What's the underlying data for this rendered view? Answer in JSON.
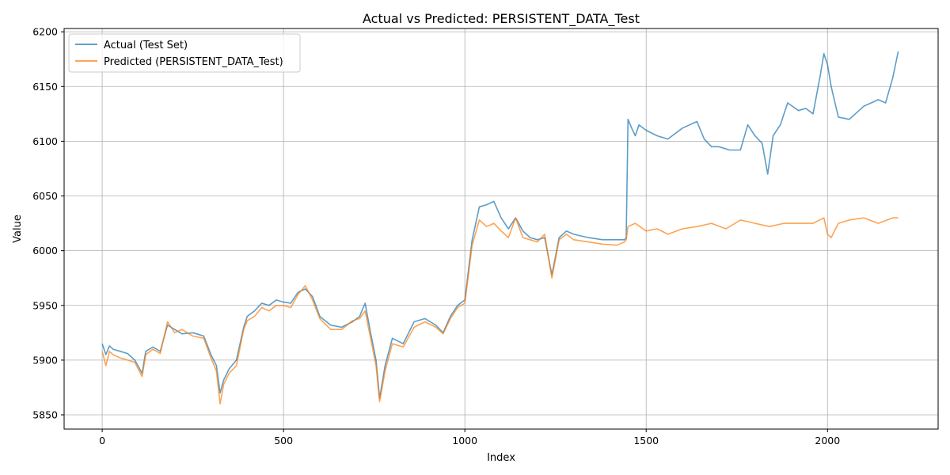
{
  "chart_data": {
    "type": "line",
    "title": "Actual vs Predicted: PERSISTENT_DATA_Test",
    "xlabel": "Index",
    "ylabel": "Value",
    "xlim": [
      -105,
      2305
    ],
    "ylim": [
      5837,
      6203
    ],
    "xticks": [
      0,
      500,
      1000,
      1500,
      2000
    ],
    "yticks": [
      5850,
      5900,
      5950,
      6000,
      6050,
      6100,
      6150,
      6200
    ],
    "grid": true,
    "legend_position": "top-left",
    "series": [
      {
        "name": "Actual (Test Set)",
        "color": "#1f77b4",
        "x": [
          0,
          10,
          20,
          30,
          50,
          70,
          90,
          110,
          120,
          140,
          160,
          180,
          200,
          220,
          250,
          280,
          300,
          315,
          325,
          335,
          350,
          370,
          390,
          400,
          420,
          440,
          460,
          480,
          500,
          520,
          540,
          560,
          580,
          600,
          630,
          660,
          690,
          710,
          725,
          740,
          755,
          765,
          780,
          800,
          830,
          860,
          890,
          920,
          940,
          960,
          980,
          1000,
          1020,
          1040,
          1060,
          1080,
          1100,
          1120,
          1140,
          1160,
          1180,
          1200,
          1220,
          1240,
          1260,
          1280,
          1300,
          1340,
          1380,
          1420,
          1440,
          1445,
          1450,
          1460,
          1470,
          1480,
          1500,
          1530,
          1560,
          1600,
          1640,
          1660,
          1680,
          1700,
          1730,
          1760,
          1780,
          1800,
          1820,
          1835,
          1850,
          1870,
          1890,
          1920,
          1940,
          1960,
          1980,
          1990,
          2000,
          2010,
          2030,
          2060,
          2100,
          2120,
          2140,
          2160,
          2180,
          2195
        ],
        "y": [
          5915,
          5905,
          5913,
          5910,
          5908,
          5906,
          5900,
          5888,
          5908,
          5912,
          5908,
          5932,
          5928,
          5924,
          5925,
          5922,
          5905,
          5895,
          5870,
          5882,
          5892,
          5900,
          5930,
          5940,
          5945,
          5952,
          5950,
          5955,
          5953,
          5952,
          5962,
          5965,
          5958,
          5940,
          5932,
          5930,
          5935,
          5940,
          5952,
          5925,
          5900,
          5865,
          5895,
          5920,
          5915,
          5935,
          5938,
          5932,
          5925,
          5940,
          5950,
          5955,
          6010,
          6040,
          6042,
          6045,
          6030,
          6020,
          6030,
          6018,
          6012,
          6010,
          6012,
          5978,
          6012,
          6018,
          6015,
          6012,
          6010,
          6010,
          6010,
          6012,
          6120,
          6112,
          6105,
          6115,
          6110,
          6105,
          6102,
          6112,
          6118,
          6102,
          6095,
          6095,
          6092,
          6092,
          6115,
          6105,
          6098,
          6070,
          6105,
          6115,
          6135,
          6128,
          6130,
          6125,
          6160,
          6180,
          6170,
          6150,
          6122,
          6120,
          6132,
          6135,
          6138,
          6135,
          6158,
          6182
        ]
      },
      {
        "name": "Predicted (PERSISTENT_DATA_Test)",
        "color": "#ff7f0e",
        "x": [
          0,
          10,
          20,
          30,
          50,
          70,
          90,
          110,
          120,
          140,
          160,
          180,
          200,
          220,
          250,
          280,
          300,
          315,
          325,
          335,
          350,
          370,
          390,
          400,
          420,
          440,
          460,
          480,
          500,
          520,
          540,
          560,
          580,
          600,
          630,
          660,
          690,
          710,
          725,
          740,
          755,
          765,
          780,
          800,
          830,
          860,
          890,
          920,
          940,
          960,
          980,
          1000,
          1020,
          1040,
          1060,
          1080,
          1100,
          1120,
          1140,
          1160,
          1180,
          1200,
          1220,
          1240,
          1260,
          1280,
          1300,
          1340,
          1380,
          1420,
          1440,
          1445,
          1450,
          1470,
          1500,
          1530,
          1560,
          1600,
          1640,
          1680,
          1720,
          1760,
          1800,
          1840,
          1880,
          1920,
          1960,
          1990,
          2000,
          2010,
          2030,
          2060,
          2100,
          2140,
          2180,
          2195
        ],
        "y": [
          5908,
          5895,
          5908,
          5905,
          5902,
          5900,
          5898,
          5885,
          5905,
          5910,
          5906,
          5935,
          5925,
          5928,
          5922,
          5920,
          5902,
          5890,
          5860,
          5878,
          5888,
          5895,
          5928,
          5936,
          5940,
          5948,
          5945,
          5950,
          5950,
          5948,
          5960,
          5968,
          5955,
          5938,
          5928,
          5928,
          5936,
          5938,
          5945,
          5920,
          5895,
          5862,
          5890,
          5915,
          5912,
          5930,
          5935,
          5930,
          5924,
          5938,
          5948,
          5952,
          6005,
          6028,
          6022,
          6025,
          6018,
          6012,
          6030,
          6012,
          6010,
          6008,
          6015,
          5975,
          6010,
          6015,
          6010,
          6008,
          6006,
          6005,
          6008,
          6010,
          6022,
          6025,
          6018,
          6020,
          6015,
          6020,
          6022,
          6025,
          6020,
          6028,
          6025,
          6022,
          6025,
          6025,
          6025,
          6030,
          6015,
          6012,
          6025,
          6028,
          6030,
          6025,
          6030,
          6030
        ]
      }
    ]
  }
}
